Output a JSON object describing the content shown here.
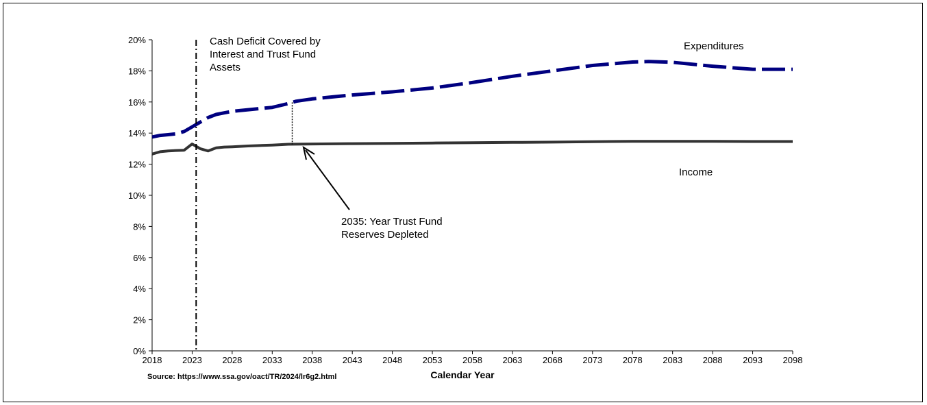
{
  "chart_data": {
    "type": "line",
    "title": "",
    "xlabel": "Calendar Year",
    "ylabel": "",
    "xlim": [
      2018,
      2098
    ],
    "ylim": [
      0,
      20
    ],
    "x_ticks": [
      "2018",
      "2023",
      "2028",
      "2033",
      "2038",
      "2043",
      "2048",
      "2053",
      "2058",
      "2063",
      "2068",
      "2073",
      "2078",
      "2083",
      "2088",
      "2093",
      "2098"
    ],
    "y_ticks": [
      "0%",
      "2%",
      "4%",
      "6%",
      "8%",
      "10%",
      "12%",
      "14%",
      "16%",
      "18%",
      "20%"
    ],
    "grid": false,
    "series": [
      {
        "name": "Expenditures",
        "style": "dashed",
        "color": "#000080",
        "x": [
          2018,
          2019,
          2020,
          2021,
          2022,
          2023,
          2024,
          2025,
          2026,
          2027,
          2028,
          2030,
          2033,
          2035,
          2036,
          2038,
          2040,
          2043,
          2048,
          2053,
          2058,
          2063,
          2068,
          2073,
          2078,
          2080,
          2083,
          2088,
          2093,
          2098
        ],
        "y": [
          13.75,
          13.85,
          13.9,
          13.95,
          14.1,
          14.4,
          14.7,
          15.0,
          15.2,
          15.3,
          15.4,
          15.5,
          15.65,
          15.9,
          16.05,
          16.2,
          16.3,
          16.45,
          16.65,
          16.9,
          17.25,
          17.65,
          18.0,
          18.35,
          18.57,
          18.6,
          18.55,
          18.3,
          18.1,
          18.1
        ]
      },
      {
        "name": "Income",
        "style": "solid",
        "color": "#333333",
        "x": [
          2018,
          2019,
          2020,
          2021,
          2022,
          2023,
          2024,
          2025,
          2026,
          2027,
          2028,
          2030,
          2033,
          2035,
          2038,
          2043,
          2048,
          2053,
          2058,
          2063,
          2068,
          2073,
          2078,
          2083,
          2088,
          2093,
          2098
        ],
        "y": [
          12.65,
          12.8,
          12.85,
          12.88,
          12.9,
          13.3,
          13.0,
          12.85,
          13.05,
          13.1,
          13.12,
          13.17,
          13.23,
          13.28,
          13.3,
          13.32,
          13.34,
          13.36,
          13.38,
          13.4,
          13.42,
          13.45,
          13.47,
          13.47,
          13.47,
          13.46,
          13.46
        ]
      }
    ],
    "markers": {
      "cash_deficit_year": 2023.5,
      "depletion_year": 2035.5
    },
    "annotations": {
      "cash_deficit": [
        "Cash Deficit Covered by",
        "Interest and Trust Fund",
        "Assets"
      ],
      "depletion": [
        "2035:  Year Trust Fund",
        "Reserves Depleted"
      ],
      "expenditures_label": "Expenditures",
      "income_label": "Income"
    },
    "source": "Source: https://www.ssa.gov/oact/TR/2024/lr6g2.html"
  }
}
